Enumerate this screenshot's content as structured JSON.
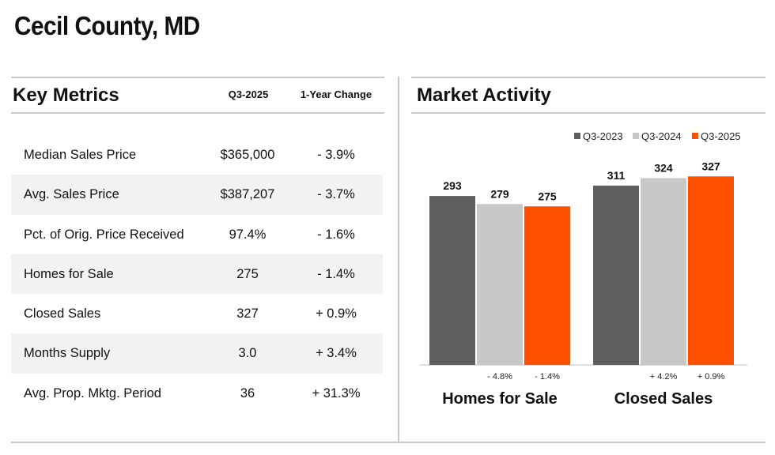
{
  "page": {
    "title": "Cecil County, MD"
  },
  "colors": {
    "accent": "#ff5000",
    "dark_gray": "#5f5f5f",
    "light_gray": "#c8c8c8",
    "shade": "#f2f2f2"
  },
  "key_metrics": {
    "heading": "Key Metrics",
    "col_period": "Q3-2025",
    "col_change": "1-Year Change",
    "rows": [
      {
        "label": "Median Sales Price",
        "value": "$365,000",
        "change": "- 3.9%"
      },
      {
        "label": "Avg. Sales Price",
        "value": "$387,207",
        "change": "- 3.7%"
      },
      {
        "label": "Pct. of Orig. Price Received",
        "value": "97.4%",
        "change": "- 1.6%"
      },
      {
        "label": "Homes for Sale",
        "value": "275",
        "change": "- 1.4%"
      },
      {
        "label": "Closed Sales",
        "value": "327",
        "change": "+ 0.9%"
      },
      {
        "label": "Months Supply",
        "value": "3.0",
        "change": "+ 3.4%"
      },
      {
        "label": "Avg. Prop. Mktg. Period",
        "value": "36",
        "change": "+ 31.3%"
      }
    ]
  },
  "market_activity": {
    "heading": "Market Activity"
  },
  "chart_data": {
    "type": "bar",
    "title": "Market Activity",
    "categories": [
      "Homes for Sale",
      "Closed Sales"
    ],
    "series": [
      {
        "name": "Q3-2023",
        "values": [
          293,
          311
        ],
        "color": "#5f5f5f",
        "labels": [
          "293",
          "311"
        ],
        "changes": [
          "",
          ""
        ]
      },
      {
        "name": "Q3-2024",
        "values": [
          279,
          324
        ],
        "color": "#c8c8c8",
        "labels": [
          "279",
          "324"
        ],
        "changes": [
          "- 4.8%",
          "+ 4.2%"
        ]
      },
      {
        "name": "Q3-2025",
        "values": [
          275,
          327
        ],
        "color": "#ff5000",
        "labels": [
          "275",
          "327"
        ],
        "changes": [
          "- 1.4%",
          "+ 0.9%"
        ]
      }
    ],
    "legend_position": "top-right",
    "ylim": [
      0,
      400
    ]
  }
}
